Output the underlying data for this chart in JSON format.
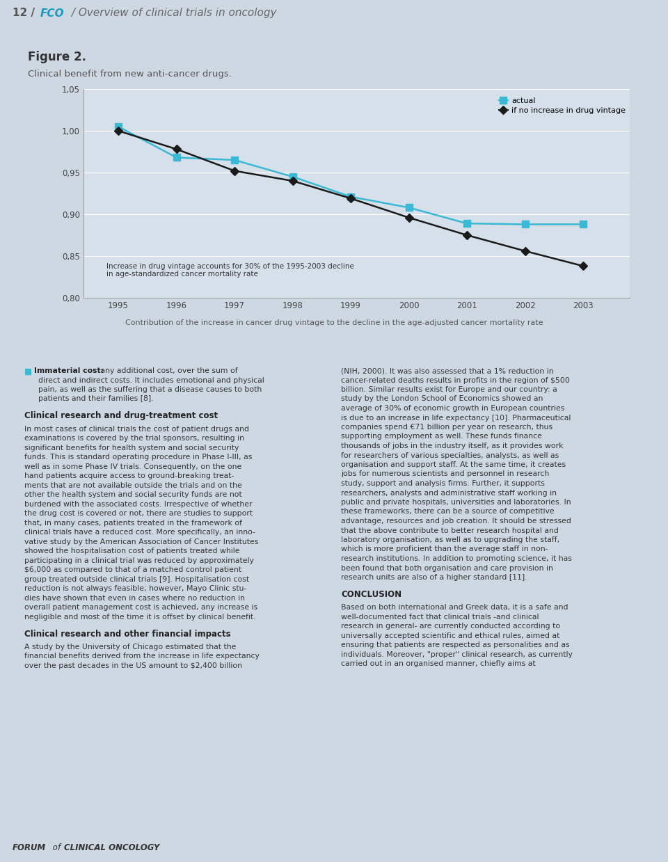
{
  "fig_width": 9.6,
  "fig_height": 12.39,
  "page_bg": "#cdd8e2",
  "header_bg": "#e8eff4",
  "header_line_cyan": "#3ab8d4",
  "header_line_gray": "#c0cdd6",
  "chart_panel_bg": "#cdd8e2",
  "chart_plot_bg": "#d5e0ea",
  "body_bg": "#ffffff",
  "footer_bg": "#cdd8e2",
  "footer_line": "#3ab8d4",
  "figure_title": "Figure 2.",
  "figure_subtitle": "Clinical benefit from new anti-cancer drugs.",
  "years": [
    1995,
    1996,
    1997,
    1998,
    1999,
    2000,
    2001,
    2002,
    2003
  ],
  "actual": [
    1.005,
    0.968,
    0.965,
    0.945,
    0.921,
    0.908,
    0.889,
    0.888,
    0.888
  ],
  "no_increase": [
    1.0,
    0.978,
    0.952,
    0.94,
    0.919,
    0.896,
    0.875,
    0.856,
    0.838
  ],
  "actual_color": "#3ab8d4",
  "no_increase_color": "#1a1a1a",
  "ylim_min": 0.8,
  "ylim_max": 1.05,
  "yticks": [
    0.8,
    0.85,
    0.9,
    0.95,
    1.0,
    1.05
  ],
  "annotation_line1": "Increase in drug vintage accounts for 30% of the 1995-2003 decline",
  "annotation_line2": "in age-standardized cancer mortality rate",
  "xlabel_text": "Contribution of the increase in cancer drug vintage to the decline in the age-adjusted cancer mortality rate",
  "legend_actual": "actual",
  "legend_no_increase": "if no increase in drug vintage",
  "footer_text": "FORUM of CLINICAL ONCOLOGY",
  "body_fs": 7.8,
  "section_fs": 8.5
}
